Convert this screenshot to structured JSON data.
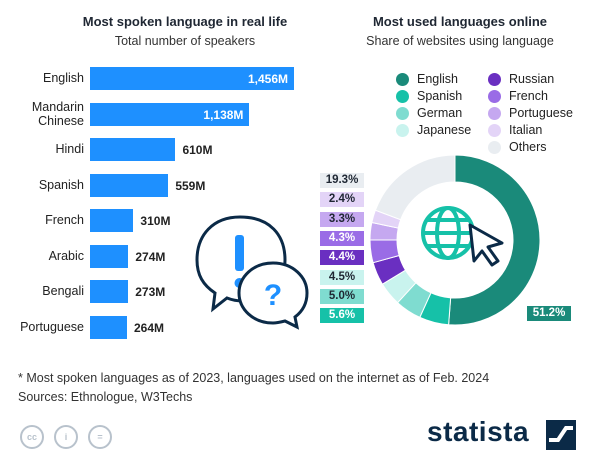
{
  "chart_data": [
    {
      "type": "bar",
      "orientation": "horizontal",
      "title": "Most spoken language in real life",
      "subtitle": "Total number of speakers",
      "categories": [
        "English",
        "Mandarin Chinese",
        "Hindi",
        "Spanish",
        "French",
        "Arabic",
        "Bengali",
        "Portuguese"
      ],
      "values": [
        1456,
        1138,
        610,
        559,
        310,
        274,
        273,
        264
      ],
      "labels": [
        "1,456M",
        "1,138M",
        "610M",
        "559M",
        "310M",
        "274M",
        "273M",
        "264M"
      ],
      "color": "#1e90ff"
    },
    {
      "type": "pie",
      "style": "donut",
      "title": "Most used languages online",
      "subtitle": "Share of websites using language",
      "legend_placement": "top",
      "slices": [
        {
          "name": "English",
          "value": 51.2,
          "label": "51.2%",
          "color": "#1a8a7a"
        },
        {
          "name": "Spanish",
          "value": 5.6,
          "label": "5.6%",
          "color": "#16c1a8"
        },
        {
          "name": "German",
          "value": 5.0,
          "label": "5.0%",
          "color": "#7fdcd0"
        },
        {
          "name": "Japanese",
          "value": 4.5,
          "label": "4.5%",
          "color": "#c9f3ee"
        },
        {
          "name": "Russian",
          "value": 4.4,
          "label": "4.4%",
          "color": "#6a2fc1"
        },
        {
          "name": "French",
          "value": 4.3,
          "label": "4.3%",
          "color": "#9a6ce6"
        },
        {
          "name": "Portuguese",
          "value": 3.3,
          "label": "3.3%",
          "color": "#c5a8f0"
        },
        {
          "name": "Italian",
          "value": 2.4,
          "label": "2.4%",
          "color": "#e3d4f7"
        },
        {
          "name": "Others",
          "value": 19.3,
          "label": "19.3%",
          "color": "#e9edf1"
        }
      ]
    }
  ],
  "footnote": {
    "line1": "* Most spoken languages as of 2023, languages used on the internet as of Feb. 2024",
    "line2": "Sources: Ethnologue, W3Techs"
  },
  "license_icons": [
    "cc-icon",
    "by-icon",
    "nd-icon"
  ],
  "brand": "statista"
}
